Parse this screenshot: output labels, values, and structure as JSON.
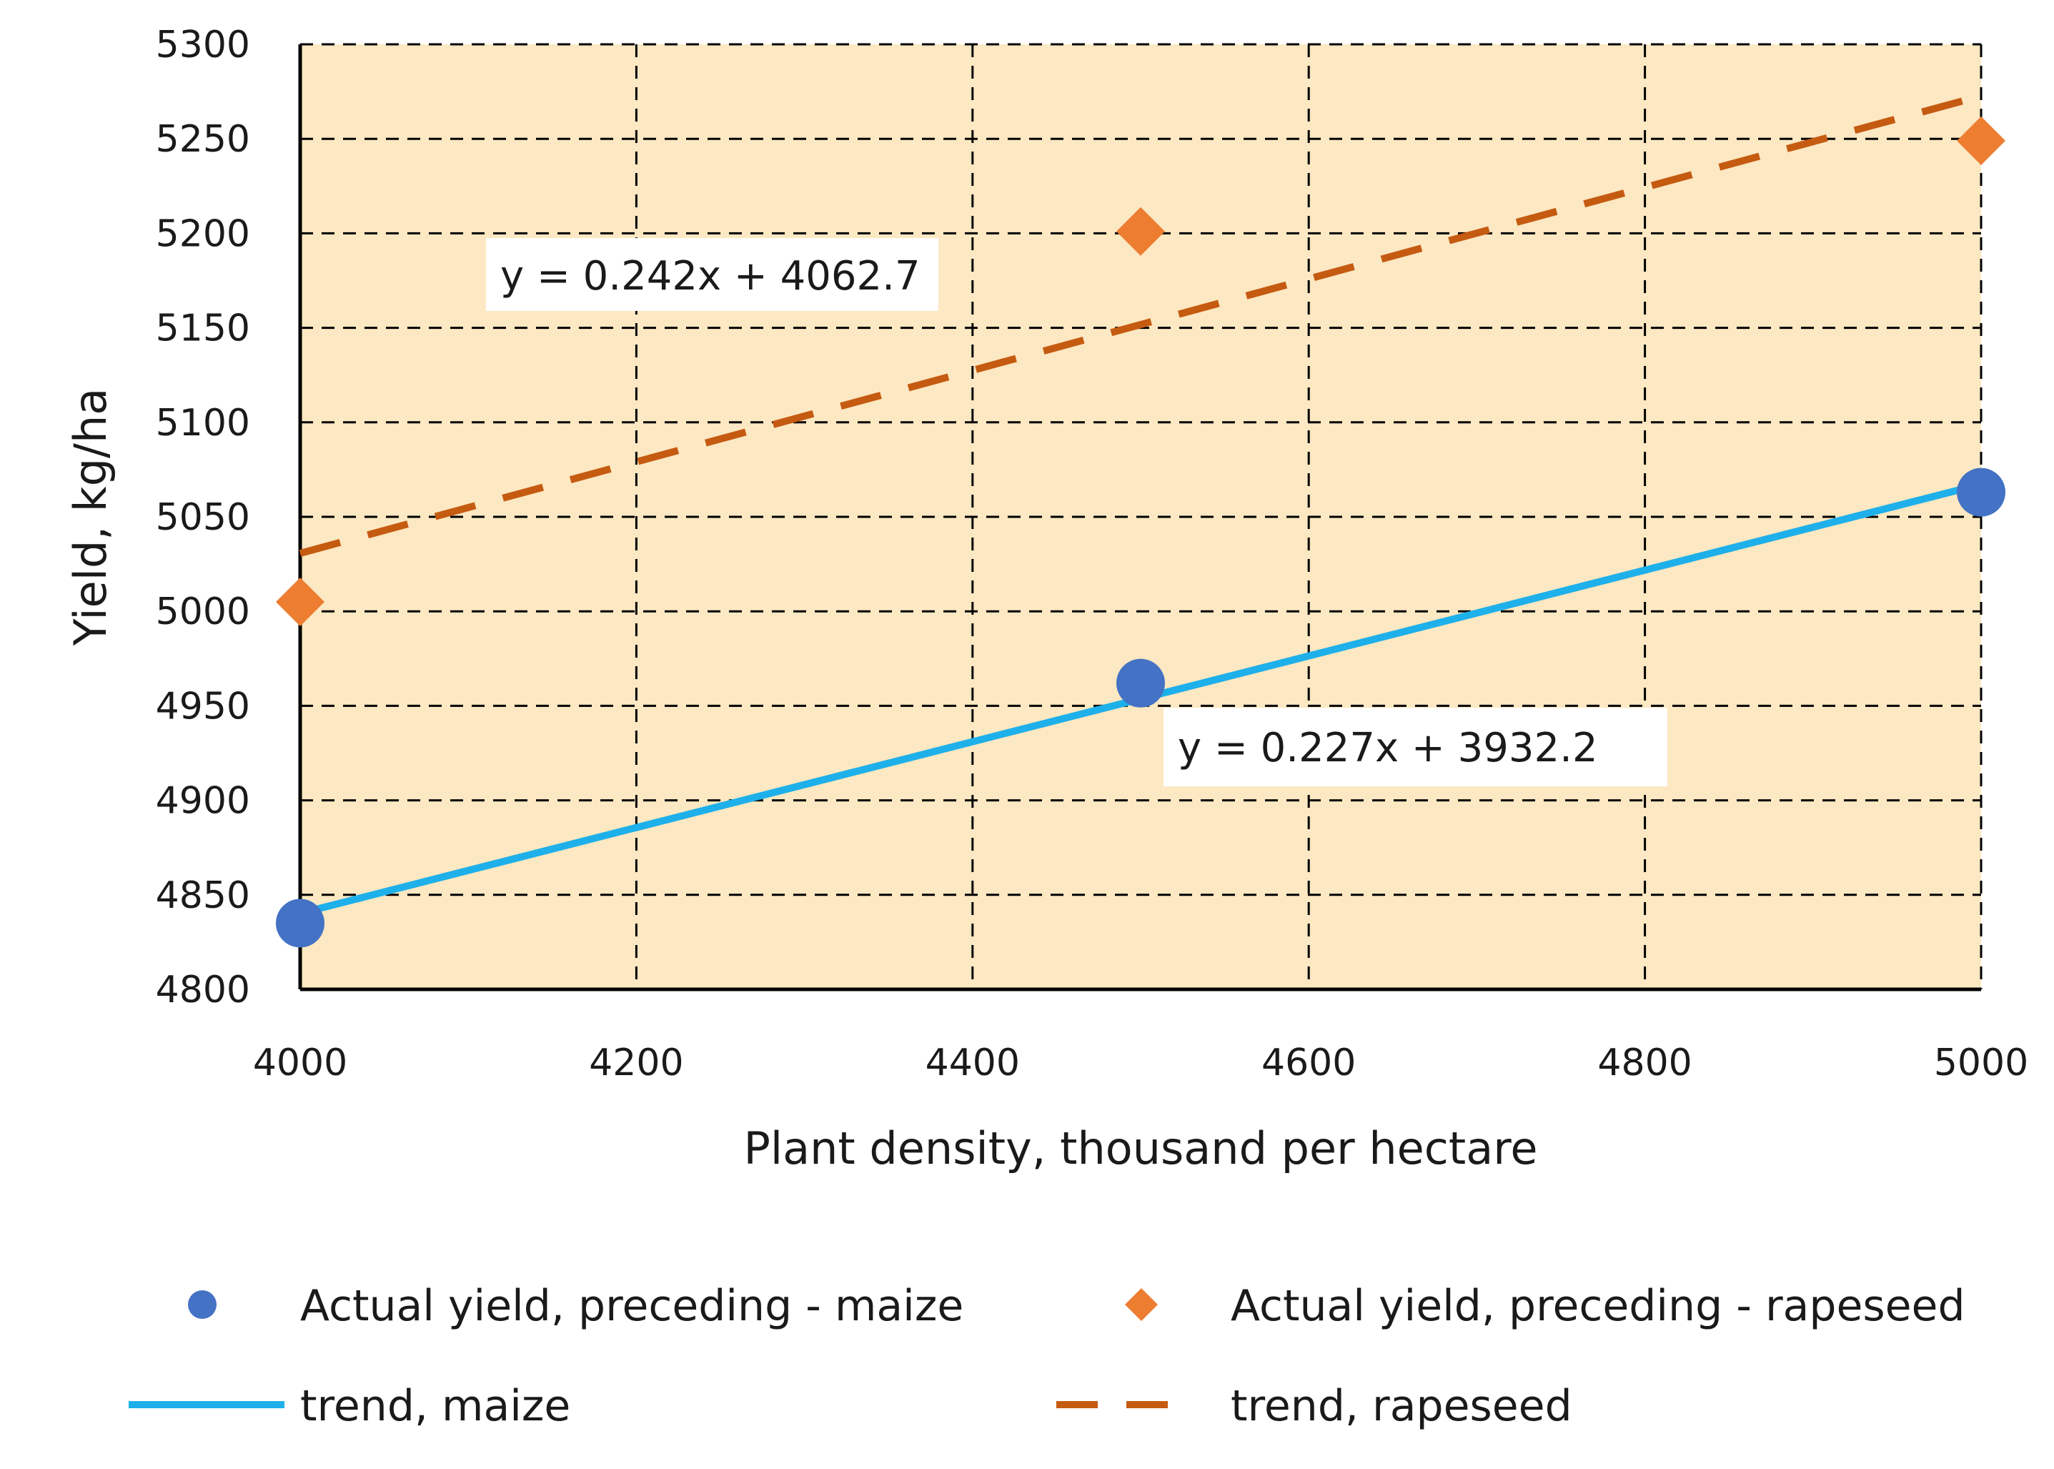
{
  "chart_data": {
    "type": "scatter",
    "title": "",
    "xlabel": "Plant density, thousand per hectare",
    "ylabel": "Yield, kg/ha",
    "xlim": [
      4000,
      5000
    ],
    "ylim": [
      4800,
      5300
    ],
    "xticks": [
      4000,
      4200,
      4400,
      4600,
      4800,
      5000
    ],
    "yticks": [
      4800,
      4850,
      4900,
      4950,
      5000,
      5050,
      5100,
      5150,
      5200,
      5250,
      5300
    ],
    "grid": "dashed",
    "plot_background": "#FCE8C2",
    "series": [
      {
        "name": "Actual yield, preceding - maize",
        "marker": "circle",
        "color": "#4472C4",
        "x": [
          4000,
          4500,
          5000
        ],
        "y": [
          4835,
          4962,
          5063
        ]
      },
      {
        "name": "Actual yield, preceding - rapeseed",
        "marker": "diamond",
        "color": "#ED7D31",
        "x": [
          4000,
          4500,
          5000
        ],
        "y": [
          5005,
          5201,
          5249
        ]
      }
    ],
    "trendlines": [
      {
        "name": "trend, maize",
        "style": "solid",
        "color": "#1EB0EA",
        "slope": 0.227,
        "intercept": 3932.2,
        "equation": "y = 0.227x + 3932.2"
      },
      {
        "name": "trend, rapeseed",
        "style": "dashed",
        "color": "#C55A11",
        "slope": 0.242,
        "intercept": 4062.7,
        "equation": "y = 0.242x + 4062.7"
      }
    ]
  }
}
